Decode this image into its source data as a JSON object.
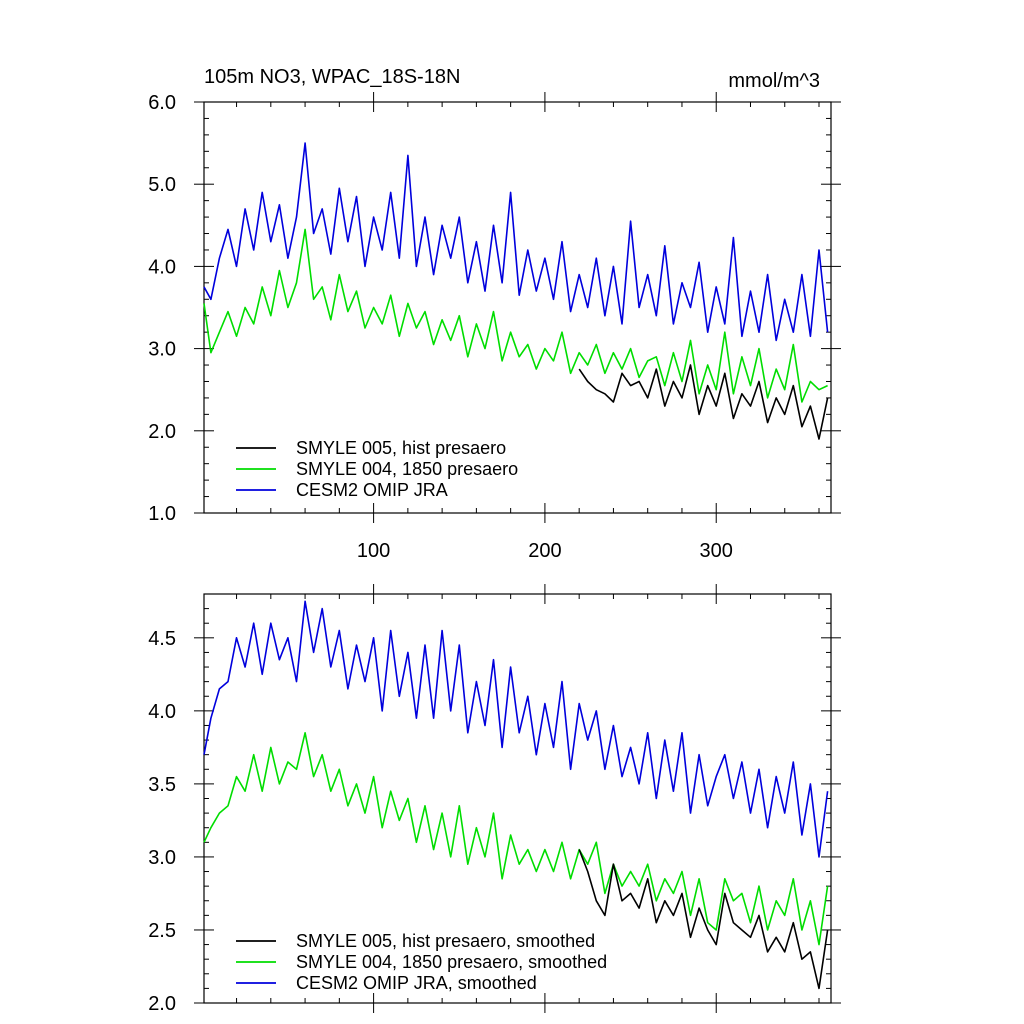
{
  "figure": {
    "top_title_left": "105m NO3, WPAC_18S-18N",
    "top_title_right": "mmol/m^3"
  },
  "chart_data": [
    {
      "type": "line",
      "title": "105m NO3, WPAC_18S-18N",
      "units": "mmol/m^3",
      "xlim": [
        1,
        367
      ],
      "ylim": [
        1.0,
        6.0
      ],
      "xticks": [
        100,
        200,
        300
      ],
      "yticks": [
        1.0,
        2.0,
        3.0,
        4.0,
        5.0,
        6.0
      ],
      "yticklabels": [
        "1.0",
        "2.0",
        "3.0",
        "4.0",
        "5.0",
        "6.0"
      ],
      "legend_position": "bottom-left",
      "series": [
        {
          "name": "SMYLE 005, hist presaero",
          "color": "#000000",
          "x": [
            220,
            225,
            230,
            235,
            240,
            245,
            250,
            255,
            260,
            265,
            270,
            275,
            280,
            285,
            290,
            295,
            300,
            305,
            310,
            315,
            320,
            325,
            330,
            335,
            340,
            345,
            350,
            355,
            360,
            365
          ],
          "y": [
            2.75,
            2.6,
            2.5,
            2.45,
            2.35,
            2.7,
            2.55,
            2.6,
            2.4,
            2.75,
            2.3,
            2.6,
            2.4,
            2.8,
            2.2,
            2.55,
            2.3,
            2.7,
            2.15,
            2.45,
            2.3,
            2.6,
            2.1,
            2.4,
            2.2,
            2.55,
            2.05,
            2.3,
            1.9,
            2.4
          ]
        },
        {
          "name": "SMYLE 004, 1850 presaero",
          "color": "#00dd00",
          "x": [
            1,
            5,
            10,
            15,
            20,
            25,
            30,
            35,
            40,
            45,
            50,
            55,
            60,
            65,
            70,
            75,
            80,
            85,
            90,
            95,
            100,
            105,
            110,
            115,
            120,
            125,
            130,
            135,
            140,
            145,
            150,
            155,
            160,
            165,
            170,
            175,
            180,
            185,
            190,
            195,
            200,
            205,
            210,
            215,
            220,
            225,
            230,
            235,
            240,
            245,
            250,
            255,
            260,
            265,
            270,
            275,
            280,
            285,
            290,
            295,
            300,
            305,
            310,
            315,
            320,
            325,
            330,
            335,
            340,
            345,
            350,
            355,
            360,
            365
          ],
          "y": [
            3.55,
            2.95,
            3.2,
            3.45,
            3.15,
            3.5,
            3.3,
            3.75,
            3.4,
            3.95,
            3.5,
            3.8,
            4.45,
            3.6,
            3.75,
            3.35,
            3.9,
            3.45,
            3.7,
            3.25,
            3.5,
            3.3,
            3.65,
            3.15,
            3.55,
            3.25,
            3.45,
            3.05,
            3.35,
            3.1,
            3.4,
            2.9,
            3.3,
            3.0,
            3.45,
            2.85,
            3.2,
            2.9,
            3.05,
            2.75,
            3.0,
            2.85,
            3.2,
            2.7,
            2.95,
            2.8,
            3.05,
            2.7,
            2.95,
            2.75,
            3.0,
            2.65,
            2.85,
            2.9,
            2.55,
            2.95,
            2.6,
            3.1,
            2.45,
            2.8,
            2.5,
            3.2,
            2.45,
            2.9,
            2.55,
            3.0,
            2.4,
            2.75,
            2.5,
            3.05,
            2.35,
            2.6,
            2.5,
            2.55
          ]
        },
        {
          "name": "CESM2 OMIP JRA",
          "color": "#0000dd",
          "x": [
            1,
            5,
            10,
            15,
            20,
            25,
            30,
            35,
            40,
            45,
            50,
            55,
            60,
            65,
            70,
            75,
            80,
            85,
            90,
            95,
            100,
            105,
            110,
            115,
            120,
            125,
            130,
            135,
            140,
            145,
            150,
            155,
            160,
            165,
            170,
            175,
            180,
            185,
            190,
            195,
            200,
            205,
            210,
            215,
            220,
            225,
            230,
            235,
            240,
            245,
            250,
            255,
            260,
            265,
            270,
            275,
            280,
            285,
            290,
            295,
            300,
            305,
            310,
            315,
            320,
            325,
            330,
            335,
            340,
            345,
            350,
            355,
            360,
            365
          ],
          "y": [
            3.75,
            3.6,
            4.1,
            4.45,
            4.0,
            4.7,
            4.2,
            4.9,
            4.3,
            4.75,
            4.1,
            4.6,
            5.5,
            4.4,
            4.7,
            4.15,
            4.95,
            4.3,
            4.85,
            4.0,
            4.6,
            4.2,
            4.9,
            4.1,
            5.35,
            4.0,
            4.6,
            3.9,
            4.5,
            4.1,
            4.6,
            3.8,
            4.3,
            3.7,
            4.5,
            3.8,
            4.9,
            3.65,
            4.2,
            3.7,
            4.1,
            3.6,
            4.3,
            3.45,
            3.9,
            3.5,
            4.1,
            3.4,
            4.0,
            3.3,
            4.55,
            3.5,
            3.9,
            3.4,
            4.25,
            3.3,
            3.8,
            3.5,
            4.05,
            3.2,
            3.75,
            3.3,
            4.35,
            3.15,
            3.7,
            3.2,
            3.9,
            3.1,
            3.6,
            3.2,
            3.9,
            3.15,
            4.2,
            3.2
          ]
        }
      ]
    },
    {
      "type": "line",
      "xlim": [
        1,
        367
      ],
      "ylim": [
        2.0,
        4.8
      ],
      "xticks": [
        100,
        200,
        300
      ],
      "yticks": [
        2.0,
        2.5,
        3.0,
        3.5,
        4.0,
        4.5
      ],
      "yticklabels": [
        "2.0",
        "2.5",
        "3.0",
        "3.5",
        "4.0",
        "4.5"
      ],
      "legend_position": "bottom-left",
      "series": [
        {
          "name": "SMYLE 005, hist presaero, smoothed",
          "color": "#000000",
          "x": [
            220,
            225,
            230,
            235,
            240,
            245,
            250,
            255,
            260,
            265,
            270,
            275,
            280,
            285,
            290,
            295,
            300,
            305,
            310,
            315,
            320,
            325,
            330,
            335,
            340,
            345,
            350,
            355,
            360,
            365
          ],
          "y": [
            3.05,
            2.9,
            2.7,
            2.6,
            2.95,
            2.7,
            2.75,
            2.65,
            2.85,
            2.55,
            2.7,
            2.6,
            2.75,
            2.45,
            2.65,
            2.5,
            2.4,
            2.75,
            2.55,
            2.5,
            2.45,
            2.6,
            2.35,
            2.45,
            2.35,
            2.55,
            2.3,
            2.35,
            2.1,
            2.5
          ]
        },
        {
          "name": "SMYLE 004, 1850 presaero, smoothed",
          "color": "#00dd00",
          "x": [
            1,
            5,
            10,
            15,
            20,
            25,
            30,
            35,
            40,
            45,
            50,
            55,
            60,
            65,
            70,
            75,
            80,
            85,
            90,
            95,
            100,
            105,
            110,
            115,
            120,
            125,
            130,
            135,
            140,
            145,
            150,
            155,
            160,
            165,
            170,
            175,
            180,
            185,
            190,
            195,
            200,
            205,
            210,
            215,
            220,
            225,
            230,
            235,
            240,
            245,
            250,
            255,
            260,
            265,
            270,
            275,
            280,
            285,
            290,
            295,
            300,
            305,
            310,
            315,
            320,
            325,
            330,
            335,
            340,
            345,
            350,
            355,
            360,
            365
          ],
          "y": [
            3.1,
            3.2,
            3.3,
            3.35,
            3.55,
            3.45,
            3.7,
            3.45,
            3.75,
            3.5,
            3.65,
            3.6,
            3.85,
            3.55,
            3.7,
            3.45,
            3.6,
            3.35,
            3.5,
            3.3,
            3.55,
            3.2,
            3.45,
            3.25,
            3.4,
            3.1,
            3.35,
            3.05,
            3.3,
            3.0,
            3.35,
            2.95,
            3.2,
            3.0,
            3.3,
            2.85,
            3.15,
            2.95,
            3.05,
            2.9,
            3.05,
            2.9,
            3.1,
            2.85,
            3.05,
            2.95,
            3.1,
            2.75,
            2.95,
            2.8,
            2.9,
            2.8,
            2.95,
            2.7,
            2.85,
            2.75,
            2.9,
            2.6,
            2.85,
            2.55,
            2.5,
            2.85,
            2.7,
            2.75,
            2.55,
            2.8,
            2.5,
            2.7,
            2.6,
            2.85,
            2.5,
            2.7,
            2.4,
            2.8
          ]
        },
        {
          "name": "CESM2 OMIP JRA, smoothed",
          "color": "#0000dd",
          "x": [
            1,
            5,
            10,
            15,
            20,
            25,
            30,
            35,
            40,
            45,
            50,
            55,
            60,
            65,
            70,
            75,
            80,
            85,
            90,
            95,
            100,
            105,
            110,
            115,
            120,
            125,
            130,
            135,
            140,
            145,
            150,
            155,
            160,
            165,
            170,
            175,
            180,
            185,
            190,
            195,
            200,
            205,
            210,
            215,
            220,
            225,
            230,
            235,
            240,
            245,
            250,
            255,
            260,
            265,
            270,
            275,
            280,
            285,
            290,
            295,
            300,
            305,
            310,
            315,
            320,
            325,
            330,
            335,
            340,
            345,
            350,
            355,
            360,
            365
          ],
          "y": [
            3.7,
            3.95,
            4.15,
            4.2,
            4.5,
            4.3,
            4.6,
            4.25,
            4.6,
            4.35,
            4.5,
            4.2,
            4.75,
            4.4,
            4.7,
            4.3,
            4.55,
            4.15,
            4.45,
            4.2,
            4.5,
            4.0,
            4.55,
            4.1,
            4.4,
            3.95,
            4.45,
            3.95,
            4.55,
            4.0,
            4.45,
            3.85,
            4.2,
            3.9,
            4.35,
            3.75,
            4.3,
            3.85,
            4.1,
            3.7,
            4.05,
            3.75,
            4.2,
            3.6,
            4.05,
            3.8,
            4.0,
            3.6,
            3.9,
            3.55,
            3.75,
            3.5,
            3.85,
            3.4,
            3.8,
            3.45,
            3.85,
            3.3,
            3.7,
            3.35,
            3.55,
            3.7,
            3.4,
            3.65,
            3.3,
            3.6,
            3.2,
            3.55,
            3.3,
            3.65,
            3.15,
            3.5,
            3.0,
            3.45
          ]
        }
      ]
    }
  ]
}
